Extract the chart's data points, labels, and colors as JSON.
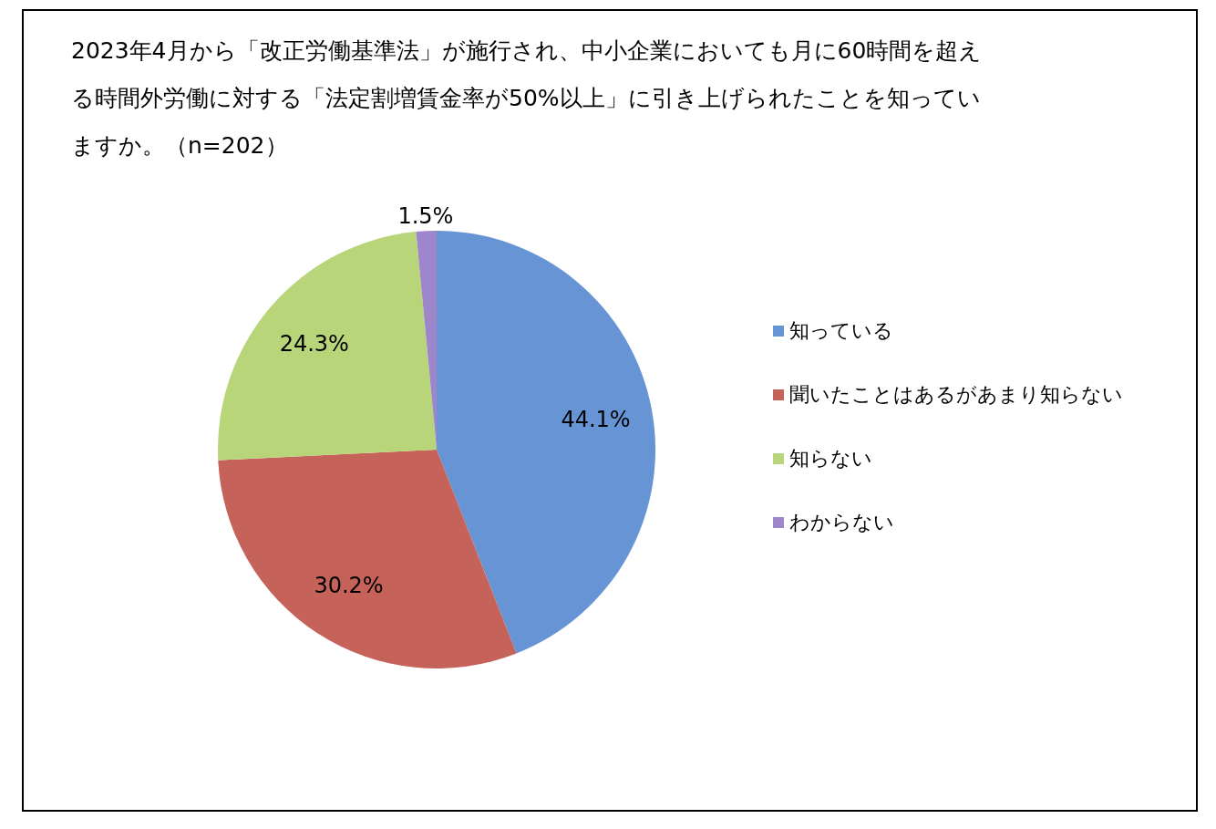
{
  "chart_data": {
    "type": "pie",
    "title": "2023年4月から「改正労働基準法」が施行され、中小企業においても月に60時間を超える時間外労働に対する「法定割増賃金率が50%以上」に引き上げられたことを知っていますか。（n=202）",
    "categories": [
      "知っている",
      "聞いたことはあるがあまり知らない",
      "知らない",
      "わからない"
    ],
    "values": [
      44.1,
      30.2,
      24.3,
      1.5
    ],
    "colors": [
      "#6794d4",
      "#c5625a",
      "#b8d57a",
      "#9d86c9"
    ],
    "value_labels": [
      "44.1%",
      "30.2%",
      "24.3%",
      "1.5%"
    ],
    "legend": "right"
  }
}
